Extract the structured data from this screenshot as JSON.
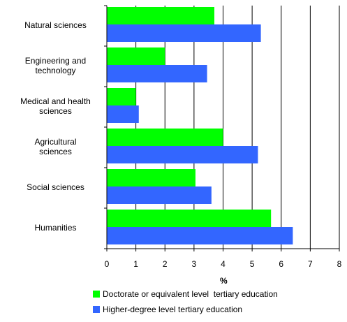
{
  "chart_data": {
    "type": "bar",
    "orientation": "horizontal",
    "categories": [
      "Natural sciences",
      "Engineering and technology",
      "Medical and health sciences",
      "Agricultural sciences",
      "Social sciences",
      "Humanities"
    ],
    "category_lines": [
      [
        "Natural sciences"
      ],
      [
        "Engineering and",
        "technology"
      ],
      [
        "Medical and health",
        "sciences"
      ],
      [
        "Agricultural",
        "sciences"
      ],
      [
        "Social sciences"
      ],
      [
        "Humanities"
      ]
    ],
    "series": [
      {
        "name": "Doctorate or equivalent level  tertiary education",
        "color": "#00ff00",
        "values": [
          3.7,
          2.0,
          1.0,
          4.0,
          3.05,
          5.65
        ]
      },
      {
        "name": "Higher-degree level tertiary education",
        "color": "#3366ff",
        "values": [
          5.3,
          3.45,
          1.1,
          5.2,
          3.6,
          6.4
        ]
      }
    ],
    "xlabel": "%",
    "xlim": [
      0,
      8
    ],
    "xticks": [
      "0",
      "1",
      "2",
      "3",
      "4",
      "5",
      "6",
      "7",
      "8"
    ],
    "grid": "vertical",
    "legend": "bottom"
  }
}
